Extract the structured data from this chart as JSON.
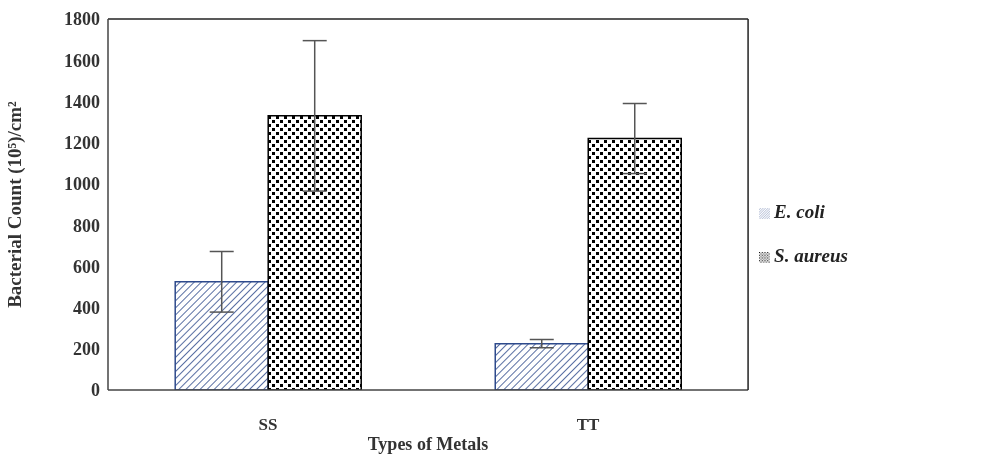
{
  "chart_data": {
    "type": "bar",
    "xlabel": "Types of Metals",
    "ylabel": "Bacterial Count (10⁵)/cm²",
    "categories": [
      "SS",
      "TT"
    ],
    "series": [
      {
        "name": "E. coli",
        "color": "#2e4a8c",
        "values": [
          525,
          225
        ],
        "errors": [
          147,
          20
        ]
      },
      {
        "name": "S. aureus",
        "color": "#000000",
        "values": [
          1330,
          1220
        ],
        "errors": [
          365,
          170
        ]
      }
    ],
    "ylim": [
      0,
      1800
    ],
    "yticks": [
      0,
      200,
      400,
      600,
      800,
      1000,
      1200,
      1400,
      1600,
      1800
    ],
    "legend": "right"
  }
}
